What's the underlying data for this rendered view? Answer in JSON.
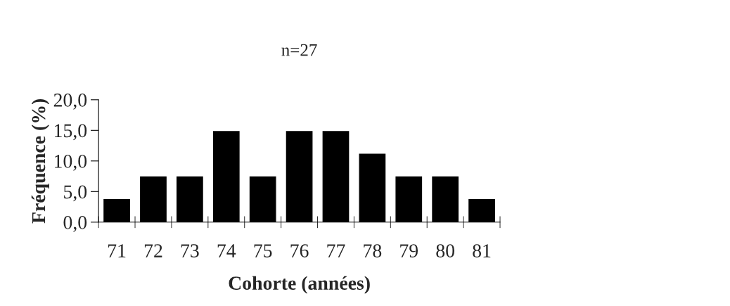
{
  "chart_data": {
    "type": "bar",
    "title": "n=27",
    "xlabel": "Cohorte (années)",
    "ylabel": "Fréquence (%)",
    "categories": [
      "71",
      "72",
      "73",
      "74",
      "75",
      "76",
      "77",
      "78",
      "79",
      "80",
      "81"
    ],
    "values": [
      3.7,
      7.4,
      7.4,
      14.8,
      7.4,
      14.8,
      14.8,
      11.1,
      7.4,
      7.4,
      3.7
    ],
    "color": "#000000",
    "ylim": [
      0,
      20
    ],
    "yticks": [
      {
        "value": 0,
        "label": "0,0"
      },
      {
        "value": 5,
        "label": "5,0"
      },
      {
        "value": 10,
        "label": "10,0"
      },
      {
        "value": 15,
        "label": "15,0"
      },
      {
        "value": 20,
        "label": "20,0"
      }
    ],
    "grid": false,
    "legend": false
  }
}
